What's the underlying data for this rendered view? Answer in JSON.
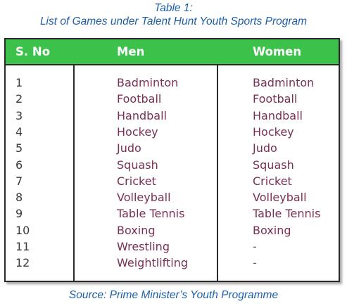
{
  "caption": {
    "label": "Table 1:",
    "title": "List of Games under Talent Hunt Youth Sports Program"
  },
  "table": {
    "headers": [
      "S. No",
      "Men",
      "Women"
    ],
    "header_color": "#3cc24a",
    "rows": [
      {
        "sno": "1",
        "men": "Badminton",
        "women": "Badminton"
      },
      {
        "sno": "2",
        "men": "Football",
        "women": "Football"
      },
      {
        "sno": "3",
        "men": "Handball",
        "women": "Handball"
      },
      {
        "sno": "4",
        "men": "Hockey",
        "women": "Hockey"
      },
      {
        "sno": "5",
        "men": "Judo",
        "women": "Judo"
      },
      {
        "sno": "6",
        "men": "Squash",
        "women": "Squash"
      },
      {
        "sno": "7",
        "men": "Cricket",
        "women": "Cricket"
      },
      {
        "sno": "8",
        "men": "Volleyball",
        "women": "Volleyball"
      },
      {
        "sno": "9",
        "men": "Table Tennis",
        "women": "Table Tennis"
      },
      {
        "sno": "10",
        "men": "Boxing",
        "women": "Boxing"
      },
      {
        "sno": "11",
        "men": "Wrestling",
        "women": "-"
      },
      {
        "sno": "12",
        "men": "Weightlifting",
        "women": "-"
      }
    ]
  },
  "source": "Source: Prime Minister’s Youth Programme"
}
